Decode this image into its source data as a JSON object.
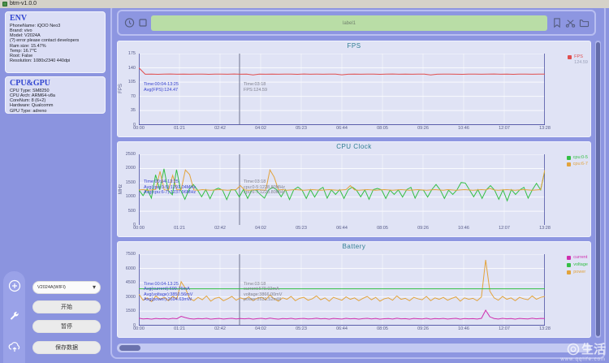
{
  "window": {
    "title": "btm-v1.0.0"
  },
  "palette": {
    "desktop": "#8b94df",
    "card_bg": "#dbdef5",
    "chart_bg": "#e0e3f5",
    "label_bar_green": "#b9dda6",
    "heading_blue": "#3246d0",
    "chart_title_teal": "#2f7d92",
    "annotation_blue": "#3a46d0",
    "annotation_gray": "#80828f"
  },
  "sidebar": {
    "env": {
      "heading": "ENV",
      "lines": [
        "PhoneName: iQOO Neo3",
        "Brand: vivo",
        "Model: V2024A",
        "(?) error please contact developers",
        "Ram size: 15.47%",
        "Temp: 16.7℃",
        "Root: False",
        "Resolution: 1080x2340 440dpi"
      ]
    },
    "cpu_gpu": {
      "heading": "CPU&GPU",
      "lines": [
        "CPU Type: SM8250",
        "CPU Arch: ARM64-v8a",
        "CoreNum: 8 (6+2)",
        "Hardware: Qualcomm",
        "GPU Type: adreno"
      ]
    }
  },
  "rail": {
    "icons": [
      "add-icon",
      "wrench-icon",
      "cloud-upload-icon"
    ]
  },
  "controls": {
    "device_select": "V2024A(WIFI)",
    "start_label": "开始",
    "pause_label": "暂停",
    "save_label": "保存数据"
  },
  "toolbar": {
    "label_value": "label1",
    "left_icons": [
      "timer-icon",
      "screenshot-icon"
    ],
    "right_icons": [
      "save-icon",
      "scissors-icon",
      "folder-icon"
    ]
  },
  "watermark": {
    "brand": "生活",
    "site": "www.qqlife.com"
  },
  "chart_data": [
    {
      "type": "line",
      "title": "FPS",
      "ylabel": "FPS",
      "ylim": [
        0,
        175
      ],
      "yticks": [
        0,
        35,
        70,
        105,
        140,
        175
      ],
      "xticks": [
        "00:00",
        "01:21",
        "02:42",
        "04:02",
        "05:23",
        "06:44",
        "08:05",
        "09:26",
        "10:46",
        "12:07",
        "13:28"
      ],
      "grid": true,
      "crosshair_t": 0.248,
      "legend": [
        {
          "label": "FPS",
          "color": "#e04f4f",
          "value": "124.59"
        }
      ],
      "annotations": [
        {
          "color": "#3a46d0",
          "x": 0.012,
          "y": 0.4,
          "lines": [
            "Time:00:04-13:25",
            "Avg(FPS):124.47"
          ]
        },
        {
          "color": "#80828f",
          "x": 0.258,
          "y": 0.4,
          "lines": [
            "Time:03:18",
            "FPS:124.59"
          ]
        }
      ],
      "series": [
        {
          "name": "FPS",
          "color": "#e04f4f",
          "values": [
            140,
            124.3,
            124.6,
            124.2,
            124.5,
            124.8,
            124.4,
            124.6,
            124.3,
            124.5,
            124.7,
            124.2,
            124.5,
            124.6,
            124.4,
            124.8,
            124.3,
            124.5,
            122.5,
            124.6,
            124.4,
            124.7,
            124.3,
            124.5,
            124.6,
            124.2,
            124.8,
            124.4,
            124.5,
            124.3,
            124.6,
            124.5,
            122.8,
            124.4,
            124.7,
            124.3,
            124.5,
            124.6,
            124.2,
            124.5,
            124.8,
            124.3,
            124.6,
            124.4,
            124.5,
            124.7,
            122.6,
            124.3,
            124.5,
            124.6,
            124.4,
            124.2,
            124.7,
            124.5,
            124.3,
            124.6,
            124.8,
            124.4,
            124.5,
            124.2,
            124.6,
            124.5,
            124.3,
            124.7,
            124.5
          ]
        }
      ]
    },
    {
      "type": "line",
      "title": "CPU Clock",
      "ylabel": "MHz",
      "ylim": [
        0,
        2500
      ],
      "yticks": [
        0,
        500,
        1000,
        1500,
        2000,
        2500
      ],
      "xticks": [
        "00:00",
        "01:21",
        "02:42",
        "04:02",
        "05:23",
        "06:44",
        "08:05",
        "09:26",
        "10:46",
        "12:07",
        "13:28"
      ],
      "grid": true,
      "crosshair_t": 0.248,
      "legend": [
        {
          "label": "cpu:0-5",
          "color": "#33bf45"
        },
        {
          "label": "cpu:6-7",
          "color": "#e2a33c"
        }
      ],
      "annotations": [
        {
          "color": "#3a46d0",
          "x": 0.012,
          "y": 0.36,
          "lines": [
            "Time:00:04-13:25",
            "Avg(cpu:0-5):1291.04MHz",
            "Avg(cpu:6-7):1237.96MHz"
          ]
        },
        {
          "color": "#80828f",
          "x": 0.258,
          "y": 0.36,
          "lines": [
            "Time:03:18",
            "cpu:0-5:1228.80MHz",
            "cpu:6-7:1228.80MHz"
          ]
        }
      ],
      "series": [
        {
          "name": "cpu:0-5",
          "color": "#33bf45",
          "values": [
            1250,
            1050,
            1280,
            960,
            1780,
            1250,
            1990,
            1230,
            1080,
            1960,
            1240,
            920,
            1270,
            1440,
            1250,
            1010,
            1260,
            940,
            1250,
            1310,
            1240,
            910,
            1260,
            1250,
            1000,
            1270,
            950,
            1250,
            1240,
            1090,
            960,
            1250,
            1340,
            1250,
            1010,
            1260,
            910,
            1250,
            1350,
            1240,
            950,
            1260,
            1000,
            1250,
            1340,
            960,
            1250,
            1090,
            1260,
            950,
            1250,
            1350,
            1240,
            1010,
            1250,
            920,
            1260,
            1300,
            1250,
            950,
            1240,
            1090,
            1250,
            1000,
            1260,
            1340,
            960,
            1250,
            1240,
            1000,
            1260,
            1440,
            1250,
            950,
            1240,
            1090,
            1250,
            1510,
            1490,
            1250,
            1010,
            1260,
            950,
            1250,
            1400,
            1240,
            920,
            1250,
            870,
            1260,
            1090,
            1250,
            1340,
            960,
            1250,
            1480,
            1250,
            1930
          ]
        },
        {
          "name": "cpu:6-7",
          "color": "#e2a33c",
          "values": [
            1250,
            1260,
            1240,
            1250,
            1270,
            1900,
            1250,
            1240,
            1760,
            1250,
            1260,
            1950,
            1790,
            1250,
            1240,
            1260,
            1250,
            1240,
            1250,
            1260,
            1250,
            1240,
            1250,
            1260,
            1400,
            1250,
            1240,
            1250,
            1260,
            1250,
            1240,
            1950,
            1700,
            1250,
            1260,
            1240,
            1250,
            1260,
            1250,
            1240,
            1250,
            1260,
            1250,
            1240,
            1250,
            1260,
            1250,
            1240,
            1250,
            1260,
            1400,
            1250,
            1240,
            1250,
            1260,
            1250,
            1240,
            1250,
            1260,
            1250,
            1240,
            1250,
            1260,
            1250,
            1240,
            1250,
            1260,
            1250,
            1240,
            1250,
            1260,
            1250,
            1240,
            1260,
            1250,
            1240,
            1250,
            1260,
            1250,
            1240,
            1250,
            1260,
            1250,
            1300,
            1250,
            1240,
            1250,
            1260,
            1250,
            1240,
            1250,
            1260,
            1250,
            1240,
            1250,
            1260,
            1950
          ]
        }
      ]
    },
    {
      "type": "line",
      "title": "Battery",
      "ylabel": "",
      "ylim": [
        0,
        7500
      ],
      "yticks": [
        0,
        1500,
        3000,
        4500,
        6000,
        7500
      ],
      "xticks": [
        "00:00",
        "01:21",
        "02:42",
        "04:02",
        "05:23",
        "06:44",
        "08:05",
        "09:26",
        "10:46",
        "12:07",
        "13:28"
      ],
      "grid": true,
      "crosshair_t": 0.248,
      "legend": [
        {
          "label": "current",
          "color": "#cf2fae"
        },
        {
          "label": "voltage",
          "color": "#33bf45"
        },
        {
          "label": "power",
          "color": "#e2a33c"
        }
      ],
      "annotations": [
        {
          "color": "#3a46d0",
          "x": 0.012,
          "y": 0.38,
          "lines": [
            "Time:00:04-13:25",
            "Avg(current):699.76mA",
            "Avg(voltage):3850.56mV",
            "Avg(power):2694.63mW"
          ]
        },
        {
          "color": "#80828f",
          "x": 0.258,
          "y": 0.38,
          "lines": [
            "Time:03:18",
            "current:679.02mA",
            "voltage:3866.00mV",
            "power:2631.52mW"
          ]
        }
      ],
      "series": [
        {
          "name": "power",
          "color": "#e2a33c",
          "values": [
            3300,
            2650,
            2900,
            2500,
            3100,
            2750,
            2950,
            2600,
            3050,
            2800,
            4600,
            3900,
            2850,
            2600,
            2950,
            2700,
            3100,
            2550,
            2850,
            2950,
            2600,
            2800,
            3050,
            2650,
            2900,
            2750,
            3000,
            2600,
            2850,
            2950,
            2700,
            3200,
            2800,
            2550,
            2900,
            2750,
            3050,
            2600,
            2850,
            2950,
            2650,
            2800,
            3100,
            2700,
            2900,
            2550,
            2950,
            2800,
            2650,
            3000,
            2750,
            2900,
            2600,
            2850,
            3050,
            2700,
            2950,
            2550,
            2800,
            2900,
            2650,
            3100,
            2750,
            2850,
            2600,
            2950,
            2800,
            2700,
            3050,
            2600,
            2900,
            2750,
            2950,
            2650,
            2850,
            3000,
            2550,
            2900,
            2750,
            2850,
            2600,
            3000,
            6900,
            3600,
            2900,
            2650,
            3050,
            2750,
            2900,
            2600,
            2950,
            2800,
            2700,
            3100,
            2750,
            2950,
            3050
          ]
        },
        {
          "name": "voltage",
          "color": "#33bf45",
          "values": [
            3850,
            3850
          ]
        },
        {
          "name": "current",
          "color": "#cf2fae",
          "values": [
            750,
            680,
            710,
            660,
            730,
            690,
            720,
            670,
            740,
            700,
            950,
            820,
            710,
            670,
            720,
            690,
            740,
            660,
            700,
            730,
            670,
            710,
            740,
            680,
            720,
            690,
            730,
            660,
            710,
            740,
            680,
            760,
            700,
            660,
            720,
            690,
            740,
            670,
            710,
            730,
            680,
            700,
            750,
            690,
            720,
            660,
            730,
            700,
            670,
            740,
            690,
            720,
            660,
            710,
            740,
            680,
            730,
            660,
            700,
            720,
            670,
            750,
            690,
            710,
            660,
            730,
            700,
            680,
            740,
            660,
            720,
            690,
            730,
            670,
            710,
            740,
            660,
            720,
            690,
            710,
            670,
            740,
            1600,
            900,
            720,
            670,
            740,
            690,
            720,
            660,
            730,
            700,
            680,
            750,
            690,
            730,
            720
          ]
        }
      ]
    }
  ]
}
